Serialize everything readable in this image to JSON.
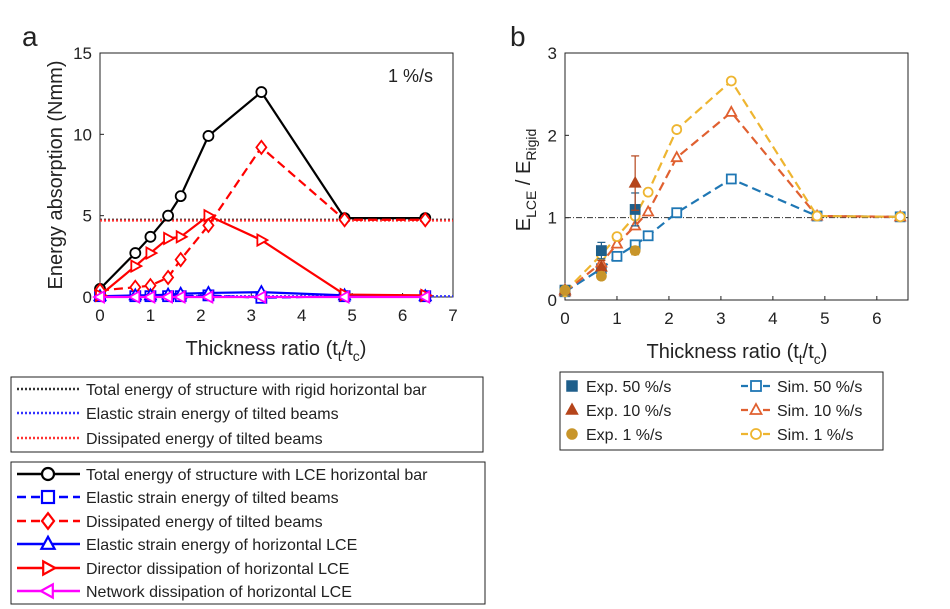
{
  "panel_a": {
    "letter": "a",
    "rate_label": "1 %/s",
    "ylabel": "Energy absorption (Nmm)",
    "xlabel_main": "Thickness ratio (t",
    "xlabel_sub1": "t",
    "xlabel_mid": "/t",
    "xlabel_sub2": "c",
    "xlabel_end": ")"
  },
  "panel_b": {
    "letter": "b",
    "ylabel_E1": "E",
    "ylabel_sub1": "LCE",
    "ylabel_mid": " / E",
    "ylabel_sub2": "Rigid",
    "xlabel_main": "Thickness ratio (t",
    "xlabel_sub1": "t",
    "xlabel_mid": "/t",
    "xlabel_sub2": "c",
    "xlabel_end": ")"
  },
  "legend_a_top": [
    {
      "label": "Total energy of structure with rigid horizontal bar",
      "color": "#333333"
    },
    {
      "label": "Elastic strain energy of tilted beams",
      "color": "#3333ff"
    },
    {
      "label": "Dissipated energy of tilted beams",
      "color": "#ff3333"
    }
  ],
  "legend_a_bottom": [
    {
      "label": "Total energy of structure with LCE horizontal bar",
      "color": "#000000",
      "marker": "circle",
      "dash": "solid"
    },
    {
      "label": "Elastic strain energy of tilted beams",
      "color": "#0000ff",
      "marker": "square",
      "dash": "dashed"
    },
    {
      "label": "Dissipated energy of tilted beams",
      "color": "#ff0000",
      "marker": "diamond",
      "dash": "dashed"
    },
    {
      "label": "Elastic strain energy of horizontal LCE",
      "color": "#0000ff",
      "marker": "triangle-up",
      "dash": "solid"
    },
    {
      "label": "Director dissipation of horizontal LCE",
      "color": "#ff0000",
      "marker": "triangle-right",
      "dash": "solid"
    },
    {
      "label": "Network dissipation of horizontal LCE",
      "color": "#ff00ff",
      "marker": "triangle-left",
      "dash": "solid"
    }
  ],
  "legend_b_exp": [
    {
      "label": "Exp. 50 %/s",
      "color": "#1f5f8b",
      "marker": "square"
    },
    {
      "label": "Exp. 10 %/s",
      "color": "#b5451b",
      "marker": "triangle-up"
    },
    {
      "label": "Exp. 1 %/s",
      "color": "#c8952a",
      "marker": "circle"
    }
  ],
  "legend_b_sim": [
    {
      "label": "Sim. 50 %/s",
      "color": "#1f77b4",
      "marker": "square"
    },
    {
      "label": "Sim. 10 %/s",
      "color": "#e06030",
      "marker": "triangle-up"
    },
    {
      "label": "Sim. 1 %/s",
      "color": "#eeb530",
      "marker": "circle"
    }
  ],
  "chart_data": [
    {
      "type": "line",
      "title": "",
      "annotation": "1 %/s",
      "xlabel": "Thickness ratio (t_t/t_c)",
      "ylabel": "Energy absorption (Nmm)",
      "xlim": [
        0,
        7
      ],
      "ylim": [
        0,
        15
      ],
      "xticks": [
        0,
        1,
        2,
        3,
        4,
        5,
        6,
        7
      ],
      "yticks": [
        0,
        5,
        10,
        15
      ],
      "hlines": [
        {
          "name": "Total energy of structure with rigid horizontal bar",
          "y": 4.75,
          "color": "#333333"
        },
        {
          "name": "Elastic strain energy of tilted beams",
          "y": 0.05,
          "color": "#3333ff"
        },
        {
          "name": "Dissipated energy of tilted beams",
          "y": 4.7,
          "color": "#ff3333"
        }
      ],
      "series": [
        {
          "name": "Total energy of structure with LCE horizontal bar",
          "color": "#000000",
          "marker": "circle",
          "dash": "solid",
          "x": [
            0,
            0.7,
            1,
            1.35,
            1.6,
            2.15,
            3.2,
            4.85,
            6.45
          ],
          "y": [
            0.5,
            2.7,
            3.7,
            5.0,
            6.2,
            9.9,
            12.6,
            4.85,
            4.85
          ]
        },
        {
          "name": "Elastic strain energy of tilted beams",
          "color": "#0000ff",
          "marker": "square",
          "dash": "dashed",
          "x": [
            0,
            0.7,
            1,
            1.35,
            1.6,
            2.15,
            3.2,
            4.85,
            6.45
          ],
          "y": [
            0.05,
            0.05,
            0.05,
            0.05,
            0.05,
            0.1,
            -0.05,
            0.05,
            0.05
          ]
        },
        {
          "name": "Dissipated energy of tilted beams",
          "color": "#ff0000",
          "marker": "diamond",
          "dash": "dashed",
          "x": [
            0,
            0.7,
            1,
            1.35,
            1.6,
            2.15,
            3.2,
            4.85,
            6.45
          ],
          "y": [
            0.4,
            0.6,
            0.7,
            1.2,
            2.3,
            4.4,
            9.2,
            4.75,
            4.75
          ]
        },
        {
          "name": "Elastic strain energy of horizontal LCE",
          "color": "#0000ff",
          "marker": "triangle-up",
          "dash": "solid",
          "x": [
            0,
            0.7,
            1,
            1.35,
            1.6,
            2.15,
            3.2,
            4.85,
            6.45
          ],
          "y": [
            0.05,
            0.1,
            0.1,
            0.15,
            0.2,
            0.25,
            0.3,
            0.1,
            0.05
          ]
        },
        {
          "name": "Director dissipation of horizontal LCE",
          "color": "#ff0000",
          "marker": "triangle-right",
          "dash": "solid",
          "x": [
            0,
            0.7,
            1,
            1.35,
            1.6,
            2.15,
            3.2,
            4.85,
            6.45
          ],
          "y": [
            0.1,
            1.9,
            2.7,
            3.6,
            3.7,
            5.0,
            3.5,
            0.15,
            0.1
          ]
        },
        {
          "name": "Network dissipation of horizontal LCE",
          "color": "#ff00ff",
          "marker": "triangle-left",
          "dash": "solid",
          "x": [
            0,
            0.7,
            1,
            1.35,
            1.6,
            2.15,
            3.2,
            4.85,
            6.45
          ],
          "y": [
            0.0,
            0.0,
            0.0,
            0.0,
            0.0,
            0.0,
            0.0,
            0.0,
            0.0
          ]
        }
      ]
    },
    {
      "type": "line",
      "title": "",
      "xlabel": "Thickness ratio (t_t/t_c)",
      "ylabel": "E_LCE / E_Rigid",
      "xlim": [
        0,
        6.6
      ],
      "ylim": [
        0,
        3
      ],
      "xticks": [
        0,
        1,
        2,
        3,
        4,
        5,
        6
      ],
      "yticks": [
        0,
        1,
        2,
        3
      ],
      "hlines": [
        {
          "name": "reference",
          "y": 1,
          "color": "#333333"
        }
      ],
      "series": [
        {
          "name": "Sim. 50 %/s",
          "color": "#1f77b4",
          "marker": "square",
          "dash": "dashed",
          "x": [
            0,
            0.7,
            1,
            1.35,
            1.6,
            2.15,
            3.2,
            4.85,
            6.45
          ],
          "y": [
            0.1,
            0.38,
            0.53,
            0.67,
            0.78,
            1.06,
            1.47,
            1.02,
            1.01
          ]
        },
        {
          "name": "Sim. 10 %/s",
          "color": "#e06030",
          "marker": "triangle-up",
          "dash": "dashed",
          "x": [
            0,
            0.7,
            1,
            1.35,
            1.6,
            2.15,
            3.2,
            4.85,
            6.45
          ],
          "y": [
            0.1,
            0.45,
            0.68,
            0.9,
            1.07,
            1.73,
            2.28,
            1.02,
            1.01
          ]
        },
        {
          "name": "Sim. 1 %/s",
          "color": "#eeb530",
          "marker": "circle",
          "dash": "dashed",
          "x": [
            0,
            0.7,
            1,
            1.35,
            1.6,
            2.15,
            3.2,
            4.85,
            6.45
          ],
          "y": [
            0.1,
            0.55,
            0.77,
            1.02,
            1.31,
            2.07,
            2.66,
            1.02,
            1.01
          ]
        },
        {
          "name": "Exp. 50 %/s",
          "color": "#1f5f8b",
          "marker": "square",
          "dash": "none",
          "x": [
            0,
            0.7,
            1.35
          ],
          "y": [
            0.12,
            0.6,
            1.1
          ],
          "err": [
            0.02,
            0.1,
            0.2
          ]
        },
        {
          "name": "Exp. 10 %/s",
          "color": "#b5451b",
          "marker": "triangle-up",
          "dash": "none",
          "x": [
            0,
            0.7,
            1.35
          ],
          "y": [
            0.12,
            0.4,
            1.42
          ],
          "err": [
            0.02,
            0.08,
            0.33
          ]
        },
        {
          "name": "Exp. 1 %/s",
          "color": "#c8952a",
          "marker": "circle",
          "dash": "none",
          "x": [
            0,
            0.7,
            1.35
          ],
          "y": [
            0.12,
            0.29,
            0.6
          ],
          "err": [
            0.02,
            0.04,
            0.05
          ]
        }
      ]
    }
  ]
}
